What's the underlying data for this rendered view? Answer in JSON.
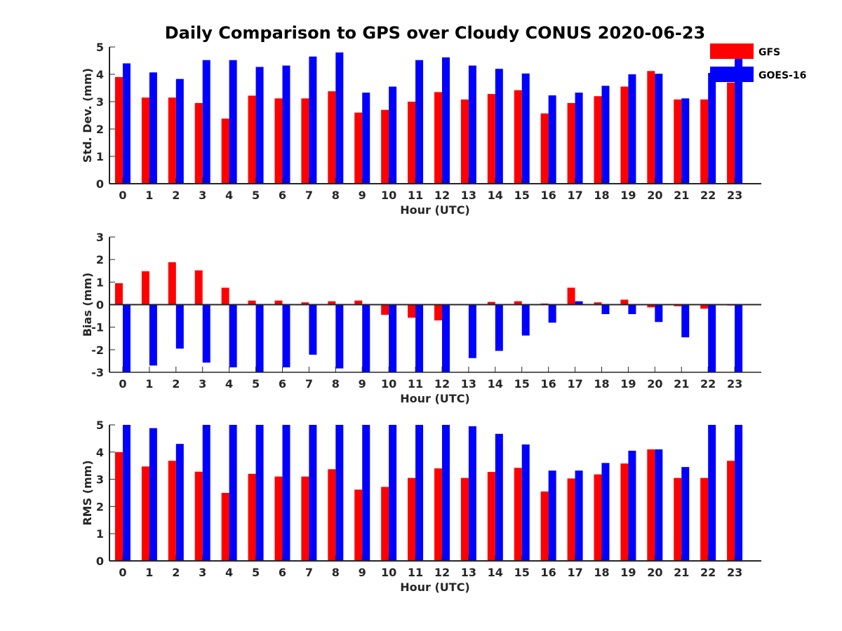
{
  "chart_data": {
    "title": "Daily Comparison to GPS over Cloudy CONUS 2020-06-23",
    "type": "bar",
    "legend": {
      "placement": "top-right",
      "entries": [
        {
          "name": "GFS",
          "color": "#ff0000"
        },
        {
          "name": "GOES-16",
          "color": "#0000ff"
        }
      ]
    },
    "panels": [
      {
        "type": "bar",
        "xlabel": "Hour (UTC)",
        "ylabel": "Std. Dev. (mm)",
        "ylim": [
          0,
          5
        ],
        "yticks": [
          0,
          1,
          2,
          3,
          4,
          5
        ],
        "categories": [
          "0",
          "1",
          "2",
          "3",
          "4",
          "5",
          "6",
          "7",
          "8",
          "9",
          "10",
          "11",
          "12",
          "13",
          "14",
          "15",
          "16",
          "17",
          "18",
          "19",
          "20",
          "21",
          "22",
          "23"
        ],
        "series": [
          {
            "name": "GFS",
            "color": "#ff0000",
            "values": [
              3.9,
              3.15,
              3.15,
              2.95,
              2.38,
              3.22,
              3.12,
              3.12,
              3.38,
              2.6,
              2.7,
              3.0,
              3.35,
              3.08,
              3.28,
              3.42,
              2.57,
              2.95,
              3.2,
              3.55,
              4.12,
              3.08,
              3.08,
              3.7
            ]
          },
          {
            "name": "GOES-16",
            "color": "#0000ff",
            "values": [
              4.4,
              4.07,
              3.83,
              4.52,
              4.52,
              4.27,
              4.32,
              4.65,
              4.8,
              3.33,
              3.55,
              4.52,
              4.62,
              4.32,
              4.2,
              4.03,
              3.23,
              3.33,
              3.58,
              4.0,
              4.02,
              3.12,
              4.05,
              4.6
            ]
          }
        ]
      },
      {
        "type": "bar",
        "xlabel": "Hour (UTC)",
        "ylabel": "Bias (mm)",
        "ylim": [
          -3,
          3
        ],
        "yticks": [
          -3,
          -2,
          -1,
          0,
          1,
          2,
          3
        ],
        "categories": [
          "0",
          "1",
          "2",
          "3",
          "4",
          "5",
          "6",
          "7",
          "8",
          "9",
          "10",
          "11",
          "12",
          "13",
          "14",
          "15",
          "16",
          "17",
          "18",
          "19",
          "20",
          "21",
          "22",
          "23"
        ],
        "series": [
          {
            "name": "GFS",
            "color": "#ff0000",
            "values": [
              0.95,
              1.48,
              1.88,
              1.52,
              0.75,
              0.18,
              0.18,
              0.1,
              0.15,
              0.18,
              -0.45,
              -0.58,
              -0.7,
              0.0,
              0.12,
              0.15,
              0.05,
              0.75,
              0.1,
              0.22,
              -0.12,
              -0.07,
              -0.18,
              -0.04
            ]
          },
          {
            "name": "GOES-16",
            "color": "#0000ff",
            "values": [
              -3.0,
              -2.7,
              -1.95,
              -2.57,
              -2.78,
              -3.0,
              -2.78,
              -2.22,
              -2.83,
              -3.0,
              -3.0,
              -3.0,
              -3.0,
              -2.37,
              -2.05,
              -1.37,
              -0.8,
              0.15,
              -0.42,
              -0.42,
              -0.77,
              -1.45,
              -3.0,
              -3.0
            ]
          }
        ]
      },
      {
        "type": "bar",
        "xlabel": "Hour (UTC)",
        "ylabel": "RMS (mm)",
        "ylim": [
          0,
          5
        ],
        "yticks": [
          0,
          1,
          2,
          3,
          4,
          5
        ],
        "categories": [
          "0",
          "1",
          "2",
          "3",
          "4",
          "5",
          "6",
          "7",
          "8",
          "9",
          "10",
          "11",
          "12",
          "13",
          "14",
          "15",
          "16",
          "17",
          "18",
          "19",
          "20",
          "21",
          "22",
          "23"
        ],
        "series": [
          {
            "name": "GFS",
            "color": "#ff0000",
            "values": [
              4.0,
              3.47,
              3.68,
              3.28,
              2.5,
              3.2,
              3.1,
              3.1,
              3.37,
              2.62,
              2.72,
              3.05,
              3.4,
              3.05,
              3.27,
              3.42,
              2.55,
              3.03,
              3.18,
              3.58,
              4.1,
              3.05,
              3.05,
              3.68
            ]
          },
          {
            "name": "GOES-16",
            "color": "#0000ff",
            "values": [
              5.0,
              4.88,
              4.3,
              5.0,
              5.0,
              5.0,
              5.0,
              5.0,
              5.0,
              5.0,
              5.0,
              5.0,
              5.0,
              4.95,
              4.67,
              4.28,
              3.32,
              3.32,
              3.6,
              4.05,
              4.1,
              3.45,
              5.0,
              5.0
            ]
          }
        ]
      }
    ]
  }
}
